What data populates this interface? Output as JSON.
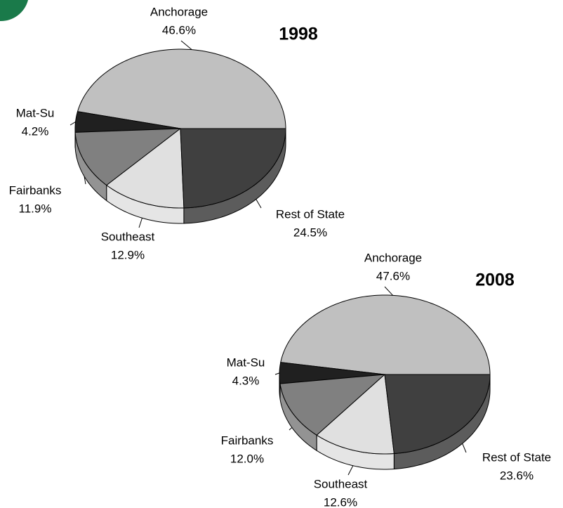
{
  "chart_data": [
    {
      "type": "pie",
      "title": "1998",
      "categories": [
        "Anchorage",
        "Mat-Su",
        "Fairbanks",
        "Southeast",
        "Rest of State"
      ],
      "values": [
        46.6,
        4.2,
        11.9,
        12.9,
        24.5
      ],
      "value_labels": [
        "46.6%",
        "4.2%",
        "11.9%",
        "12.9%",
        "24.5%"
      ],
      "colors": [
        "#c0c0c0",
        "#202020",
        "#808080",
        "#e0e0e0",
        "#404040"
      ]
    },
    {
      "type": "pie",
      "title": "2008",
      "categories": [
        "Anchorage",
        "Mat-Su",
        "Fairbanks",
        "Southeast",
        "Rest of State"
      ],
      "values": [
        47.6,
        4.3,
        12.0,
        12.6,
        23.6
      ],
      "value_labels": [
        "47.6%",
        "4.3%",
        "12.0%",
        "12.6%",
        "23.6%"
      ],
      "colors": [
        "#c0c0c0",
        "#202020",
        "#808080",
        "#e0e0e0",
        "#404040"
      ]
    }
  ]
}
